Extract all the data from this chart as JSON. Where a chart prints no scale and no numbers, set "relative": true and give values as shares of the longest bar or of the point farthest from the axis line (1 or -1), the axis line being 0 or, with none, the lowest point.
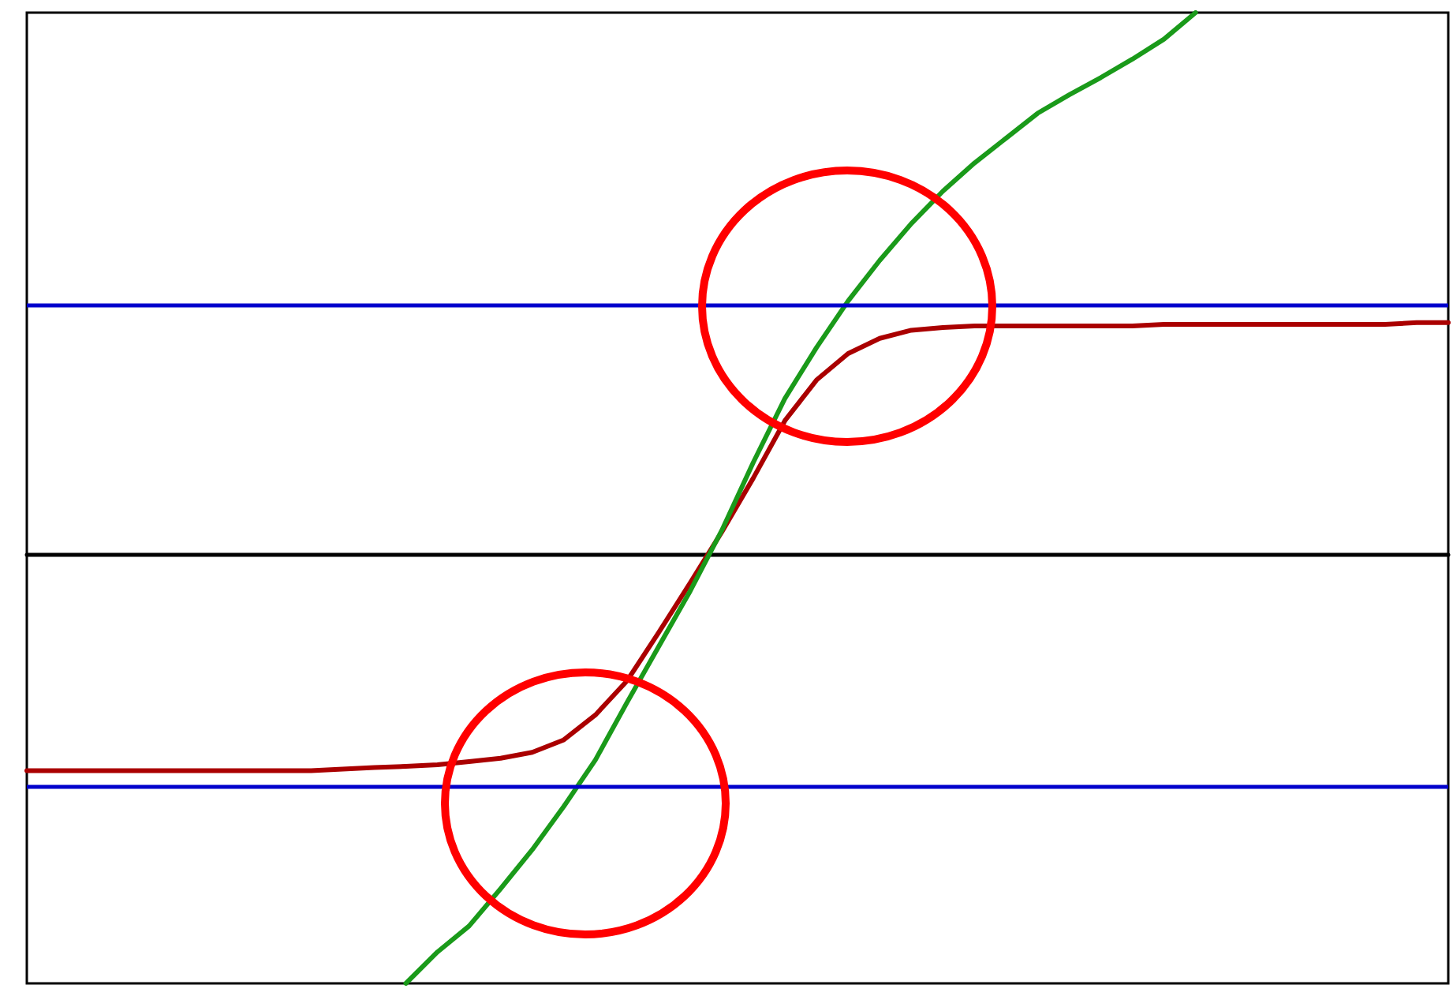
{
  "chart_data": {
    "type": "line",
    "relative": true,
    "grid": false,
    "marker": "none",
    "line_style": "solid",
    "categories": [
      null,
      null,
      null,
      null,
      null,
      null,
      null,
      null,
      null,
      null,
      null,
      null,
      null,
      null,
      null,
      null,
      null,
      null,
      null,
      null,
      null,
      null,
      null,
      null,
      null,
      null,
      null,
      null,
      null,
      null,
      null,
      null,
      null,
      null,
      null,
      null,
      null,
      null,
      null,
      null,
      null,
      null,
      null,
      null,
      null,
      null
    ],
    "series": [
      {
        "color": "#aa0000",
        "values": [
          -0.401,
          -0.401,
          -0.401,
          -0.401,
          -0.401,
          -0.401,
          -0.401,
          -0.401,
          -0.401,
          -0.401,
          -0.398,
          -0.395,
          -0.393,
          -0.39,
          -0.384,
          -0.378,
          -0.367,
          -0.344,
          -0.298,
          -0.235,
          -0.146,
          -0.054,
          0.04,
          0.14,
          0.246,
          0.321,
          0.37,
          0.398,
          0.413,
          0.418,
          0.421,
          0.421,
          0.421,
          0.421,
          0.421,
          0.421,
          0.424,
          0.424,
          0.424,
          0.424,
          0.424,
          0.424,
          0.424,
          0.424,
          0.427,
          0.427
        ]
      },
      {
        "color": "#1a9a1a",
        "values": [
          null,
          null,
          null,
          null,
          null,
          null,
          null,
          null,
          null,
          null,
          null,
          null,
          -0.794,
          -0.736,
          -0.688,
          -0.619,
          -0.547,
          -0.467,
          -0.381,
          -0.275,
          -0.172,
          -0.069,
          0.043,
          0.169,
          0.287,
          0.381,
          0.467,
          0.542,
          0.61,
          0.67,
          0.722,
          0.768,
          0.814,
          0.848,
          0.88,
          0.914,
          0.951,
          1,
          null,
          null,
          null,
          null,
          null,
          null,
          null,
          null
        ]
      }
    ],
    "ref_lines": [
      {
        "axis": "y",
        "value": 0.464,
        "color": "#0000cc"
      },
      {
        "axis": "y",
        "value": -0.427,
        "color": "#0000cc"
      }
    ]
  }
}
